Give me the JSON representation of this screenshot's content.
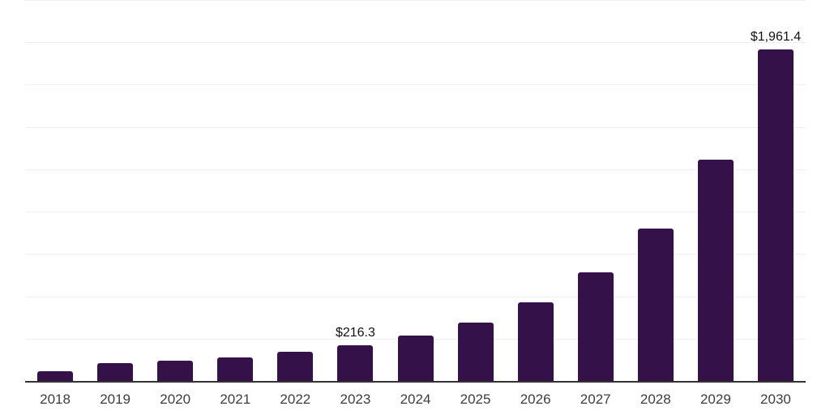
{
  "chart": {
    "background": "#ffffff"
  },
  "chart_data": {
    "type": "bar",
    "title": "",
    "xlabel": "",
    "ylabel": "",
    "categories": [
      "2018",
      "2019",
      "2020",
      "2021",
      "2022",
      "2023",
      "2024",
      "2025",
      "2026",
      "2027",
      "2028",
      "2029",
      "2030"
    ],
    "values": [
      63,
      108,
      125,
      144,
      177,
      216.3,
      271,
      349,
      470,
      645,
      906,
      1312,
      1961.4
    ],
    "data_labels": {
      "2023": "$216.3",
      "2030": "$1,961.4"
    },
    "ylim": [
      0,
      2250
    ],
    "grid_step": 250,
    "grid": "horizontal",
    "legend": false,
    "y_axis_labels_visible": false,
    "bar_color": "#35114A",
    "gridline_color": "#f0f0f0",
    "axis_line_color": "#333333",
    "tick_label_color": "#3d3d3d",
    "data_label_color": "#111111"
  }
}
